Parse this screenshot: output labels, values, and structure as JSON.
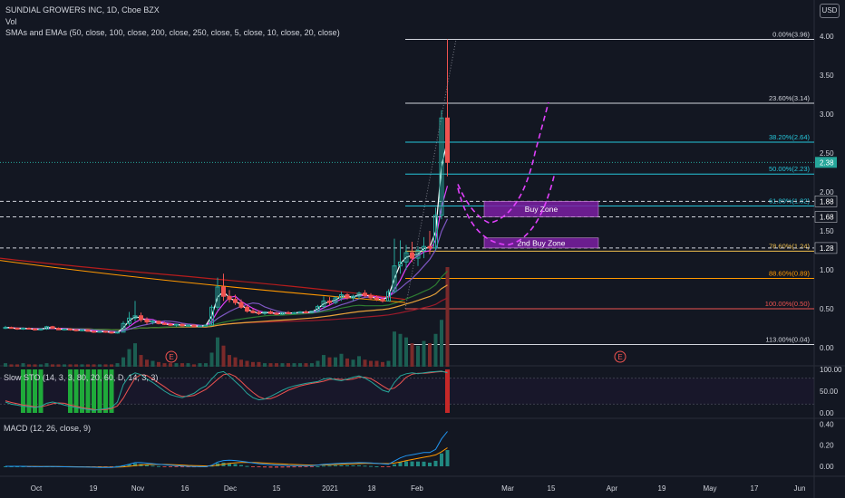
{
  "header": {
    "title": "SUNDIAL GROWERS INC, 1D, Cboe BZX",
    "vol": "Vol",
    "sma_ema": "SMAs and EMAs (50, close, 100, close, 200, close, 250, close, 5, close, 10, close, 20, close)",
    "currency": "USD"
  },
  "panes": {
    "stoch_label": "Slow STO (14, 3, 3, 80, 20, 60, D, 14, 3, 3)",
    "macd_label": "MACD (12, 26, close, 9)"
  },
  "earnings_marker": "E",
  "chart_data": {
    "type": "candlestick",
    "title": "SUNDIAL GROWERS INC, 1D, Cboe BZX",
    "currency": "USD",
    "x_ticks": [
      "Oct",
      "19",
      "Nov",
      "16",
      "Dec",
      "15",
      "2021",
      "18",
      "Feb",
      "Mar",
      "15",
      "Apr",
      "19",
      "May",
      "17",
      "Jun"
    ],
    "price_axis": {
      "ticks": [
        "4.00",
        "3.50",
        "3.00",
        "2.50",
        "2.00",
        "1.50",
        "1.00",
        "0.50",
        "0.00"
      ],
      "ylim": [
        0,
        4
      ]
    },
    "price_tags": [
      {
        "label": "2.38",
        "value": 2.38,
        "color": "#26a69a"
      },
      {
        "label": "1.88",
        "value": 1.88,
        "color": "#ffffff"
      },
      {
        "label": "1.68",
        "value": 1.68,
        "color": "#ffffff"
      },
      {
        "label": "1.28",
        "value": 1.28,
        "color": "#ffffff"
      }
    ],
    "fib_levels": [
      {
        "label": "0.00%(3.96)",
        "value": 3.96,
        "color": "#d1d4dc"
      },
      {
        "label": "23.60%(3.14)",
        "value": 3.14,
        "color": "#d1d4dc"
      },
      {
        "label": "38.20%(2.64)",
        "value": 2.64,
        "color": "#26c6da"
      },
      {
        "label": "50.00%(2.23)",
        "value": 2.23,
        "color": "#26c6da"
      },
      {
        "label": "61.80%(1.82)",
        "value": 1.82,
        "color": "#26c6da"
      },
      {
        "label": "78.60%(1.24)",
        "value": 1.24,
        "color": "#f2c14e"
      },
      {
        "label": "88.60%(0.89)",
        "value": 0.89,
        "color": "#ff9800"
      },
      {
        "label": "100.00%(0.50)",
        "value": 0.5,
        "color": "#ef5350"
      },
      {
        "label": "113.00%(0.04)",
        "value": 0.04,
        "color": "#d1d4dc"
      }
    ],
    "zones": [
      {
        "label": "Buy Zone",
        "from": 1.68,
        "to": 1.88
      },
      {
        "label": "2nd Buy Zone",
        "from": 1.28,
        "to": 1.41
      }
    ],
    "candles": [
      [
        0.26,
        0.28,
        0.24,
        0.26
      ],
      [
        0.26,
        0.27,
        0.25,
        0.25
      ],
      [
        0.25,
        0.26,
        0.23,
        0.24
      ],
      [
        0.24,
        0.26,
        0.23,
        0.25
      ],
      [
        0.25,
        0.26,
        0.24,
        0.24
      ],
      [
        0.24,
        0.25,
        0.22,
        0.23
      ],
      [
        0.23,
        0.25,
        0.22,
        0.24
      ],
      [
        0.24,
        0.28,
        0.23,
        0.27
      ],
      [
        0.27,
        0.28,
        0.24,
        0.25
      ],
      [
        0.25,
        0.26,
        0.23,
        0.23
      ],
      [
        0.23,
        0.25,
        0.22,
        0.24
      ],
      [
        0.24,
        0.25,
        0.22,
        0.23
      ],
      [
        0.23,
        0.24,
        0.21,
        0.22
      ],
      [
        0.22,
        0.24,
        0.21,
        0.23
      ],
      [
        0.23,
        0.24,
        0.21,
        0.21
      ],
      [
        0.21,
        0.22,
        0.19,
        0.2
      ],
      [
        0.2,
        0.22,
        0.19,
        0.21
      ],
      [
        0.21,
        0.22,
        0.19,
        0.2
      ],
      [
        0.2,
        0.21,
        0.18,
        0.19
      ],
      [
        0.19,
        0.21,
        0.18,
        0.2
      ],
      [
        0.2,
        0.34,
        0.2,
        0.31
      ],
      [
        0.31,
        0.46,
        0.28,
        0.38
      ],
      [
        0.38,
        0.6,
        0.34,
        0.41
      ],
      [
        0.41,
        0.45,
        0.33,
        0.36
      ],
      [
        0.36,
        0.39,
        0.3,
        0.33
      ],
      [
        0.33,
        0.36,
        0.3,
        0.34
      ],
      [
        0.34,
        0.35,
        0.3,
        0.31
      ],
      [
        0.31,
        0.33,
        0.29,
        0.3
      ],
      [
        0.3,
        0.32,
        0.28,
        0.29
      ],
      [
        0.29,
        0.31,
        0.27,
        0.3
      ],
      [
        0.3,
        0.31,
        0.27,
        0.28
      ],
      [
        0.28,
        0.3,
        0.27,
        0.29
      ],
      [
        0.29,
        0.3,
        0.27,
        0.27
      ],
      [
        0.27,
        0.29,
        0.26,
        0.28
      ],
      [
        0.28,
        0.3,
        0.27,
        0.29
      ],
      [
        0.29,
        0.55,
        0.29,
        0.52
      ],
      [
        0.52,
        0.9,
        0.48,
        0.78
      ],
      [
        0.78,
        0.95,
        0.6,
        0.66
      ],
      [
        0.66,
        0.74,
        0.58,
        0.62
      ],
      [
        0.62,
        0.68,
        0.55,
        0.58
      ],
      [
        0.58,
        0.62,
        0.5,
        0.52
      ],
      [
        0.52,
        0.55,
        0.45,
        0.47
      ],
      [
        0.47,
        0.5,
        0.44,
        0.45
      ],
      [
        0.45,
        0.48,
        0.42,
        0.44
      ],
      [
        0.44,
        0.47,
        0.42,
        0.46
      ],
      [
        0.46,
        0.48,
        0.43,
        0.44
      ],
      [
        0.44,
        0.46,
        0.42,
        0.43
      ],
      [
        0.43,
        0.46,
        0.42,
        0.45
      ],
      [
        0.45,
        0.47,
        0.43,
        0.44
      ],
      [
        0.44,
        0.46,
        0.43,
        0.45
      ],
      [
        0.45,
        0.47,
        0.44,
        0.46
      ],
      [
        0.46,
        0.48,
        0.44,
        0.45
      ],
      [
        0.45,
        0.47,
        0.44,
        0.47
      ],
      [
        0.47,
        0.55,
        0.46,
        0.53
      ],
      [
        0.53,
        0.66,
        0.5,
        0.6
      ],
      [
        0.6,
        0.65,
        0.55,
        0.58
      ],
      [
        0.58,
        0.66,
        0.56,
        0.64
      ],
      [
        0.64,
        0.72,
        0.6,
        0.68
      ],
      [
        0.68,
        0.7,
        0.62,
        0.64
      ],
      [
        0.64,
        0.68,
        0.6,
        0.66
      ],
      [
        0.66,
        0.72,
        0.62,
        0.7
      ],
      [
        0.7,
        0.74,
        0.65,
        0.67
      ],
      [
        0.67,
        0.7,
        0.62,
        0.64
      ],
      [
        0.64,
        0.67,
        0.6,
        0.62
      ],
      [
        0.62,
        0.65,
        0.58,
        0.6
      ],
      [
        0.6,
        0.75,
        0.6,
        0.72
      ],
      [
        0.72,
        1.4,
        0.72,
        1.05
      ],
      [
        1.05,
        1.38,
        0.95,
        1.1
      ],
      [
        1.1,
        1.32,
        1.0,
        1.22
      ],
      [
        1.22,
        1.36,
        1.1,
        1.15
      ],
      [
        1.15,
        1.3,
        1.05,
        1.25
      ],
      [
        1.25,
        1.42,
        1.15,
        1.3
      ],
      [
        1.3,
        1.5,
        1.2,
        1.28
      ],
      [
        1.28,
        1.8,
        1.25,
        1.7
      ],
      [
        1.7,
        3.05,
        1.65,
        2.95
      ],
      [
        2.95,
        3.96,
        2.2,
        2.38
      ]
    ],
    "volume": [
      3,
      2,
      2,
      3,
      2,
      2,
      2,
      3,
      2,
      2,
      2,
      2,
      2,
      2,
      2,
      2,
      2,
      2,
      2,
      3,
      8,
      15,
      20,
      10,
      6,
      5,
      4,
      3,
      3,
      3,
      3,
      3,
      2,
      3,
      3,
      12,
      25,
      18,
      10,
      8,
      6,
      5,
      4,
      4,
      3,
      3,
      3,
      3,
      3,
      3,
      3,
      3,
      3,
      5,
      10,
      8,
      8,
      11,
      7,
      6,
      9,
      6,
      5,
      5,
      4,
      5,
      30,
      28,
      25,
      20,
      18,
      22,
      20,
      28,
      40,
      85
    ],
    "stoch": [
      25,
      20,
      18,
      15,
      14,
      12,
      15,
      22,
      25,
      22,
      18,
      15,
      12,
      10,
      8,
      6,
      8,
      10,
      12,
      25,
      65,
      85,
      92,
      88,
      78,
      70,
      60,
      50,
      42,
      38,
      35,
      40,
      45,
      55,
      62,
      78,
      92,
      95,
      85,
      72,
      60,
      45,
      35,
      30,
      32,
      38,
      45,
      52,
      58,
      62,
      65,
      68,
      70,
      72,
      78,
      80,
      76,
      74,
      78,
      82,
      85,
      80,
      72,
      62,
      52,
      48,
      70,
      85,
      90,
      92,
      90,
      92,
      94,
      95,
      96,
      92
    ],
    "stoch_signal": [
      28,
      24,
      21,
      18,
      16,
      14,
      14,
      17,
      21,
      23,
      22,
      18,
      15,
      12,
      10,
      8,
      7,
      8,
      10,
      16,
      34,
      58,
      80,
      88,
      86,
      78,
      69,
      60,
      50,
      43,
      38,
      38,
      40,
      47,
      54,
      65,
      77,
      88,
      90,
      84,
      72,
      59,
      47,
      37,
      32,
      33,
      38,
      45,
      52,
      57,
      62,
      65,
      68,
      70,
      73,
      77,
      78,
      77,
      76,
      78,
      82,
      82,
      79,
      71,
      62,
      54,
      57,
      68,
      82,
      89,
      91,
      91,
      92,
      94,
      95,
      94
    ],
    "macd": [
      0.0,
      0.0,
      0.0,
      0.0,
      -0.002,
      -0.003,
      -0.003,
      -0.002,
      -0.002,
      -0.003,
      -0.004,
      -0.005,
      -0.006,
      -0.007,
      -0.008,
      -0.009,
      -0.01,
      -0.01,
      -0.01,
      -0.005,
      0.005,
      0.02,
      0.035,
      0.035,
      0.03,
      0.025,
      0.02,
      0.015,
      0.01,
      0.006,
      0.003,
      0.0,
      -0.002,
      -0.003,
      -0.004,
      0.01,
      0.04,
      0.055,
      0.058,
      0.055,
      0.048,
      0.04,
      0.032,
      0.025,
      0.02,
      0.015,
      0.012,
      0.01,
      0.008,
      0.007,
      0.006,
      0.006,
      0.007,
      0.012,
      0.02,
      0.022,
      0.026,
      0.03,
      0.032,
      0.033,
      0.035,
      0.034,
      0.032,
      0.028,
      0.024,
      0.02,
      0.05,
      0.08,
      0.1,
      0.11,
      0.12,
      0.13,
      0.13,
      0.16,
      0.26,
      0.33
    ],
    "macd_signal": [
      0.0,
      0.0,
      0.0,
      0.0,
      -0.001,
      -0.001,
      -0.002,
      -0.002,
      -0.002,
      -0.002,
      -0.003,
      -0.003,
      -0.004,
      -0.005,
      -0.005,
      -0.006,
      -0.007,
      -0.008,
      -0.008,
      -0.008,
      -0.005,
      0.0,
      0.007,
      0.013,
      0.016,
      0.018,
      0.018,
      0.018,
      0.016,
      0.014,
      0.012,
      0.009,
      0.007,
      0.005,
      0.003,
      0.004,
      0.011,
      0.02,
      0.027,
      0.033,
      0.036,
      0.037,
      0.036,
      0.034,
      0.031,
      0.028,
      0.025,
      0.022,
      0.019,
      0.017,
      0.015,
      0.013,
      0.012,
      0.012,
      0.014,
      0.015,
      0.017,
      0.02,
      0.022,
      0.024,
      0.026,
      0.028,
      0.029,
      0.028,
      0.027,
      0.026,
      0.031,
      0.041,
      0.053,
      0.064,
      0.075,
      0.086,
      0.095,
      0.108,
      0.138,
      0.176
    ],
    "macd_axis": {
      "ticks": [
        "0.40",
        "0.20",
        "0.00"
      ],
      "ylim": [
        -0.06,
        0.42
      ]
    },
    "stoch_axis": {
      "ticks": [
        "100.00",
        "50.00",
        "0.00"
      ],
      "ylim": [
        0,
        100
      ]
    },
    "colors": {
      "up": "#26a69a",
      "down": "#ef5350",
      "background": "#131722",
      "text": "#d1d4dc",
      "projection": "#e040fb",
      "zone": "#7b1fa2"
    }
  }
}
